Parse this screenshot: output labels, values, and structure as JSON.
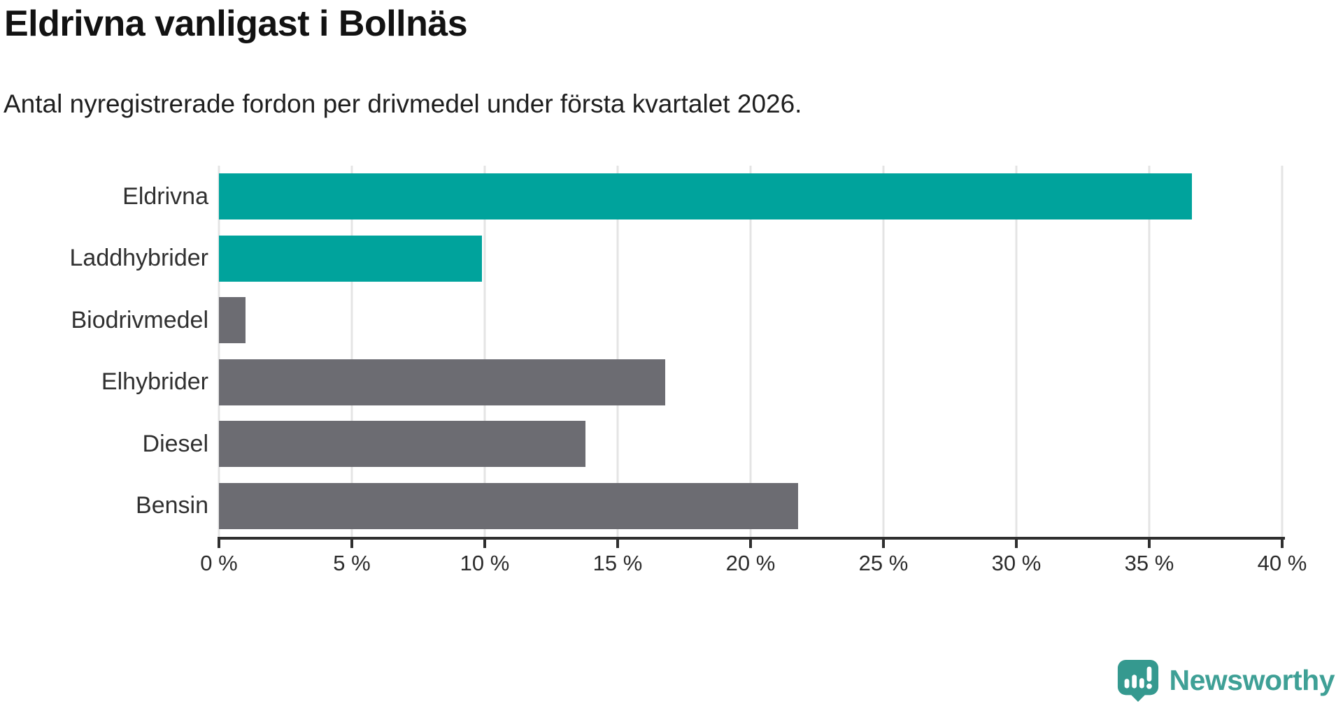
{
  "title": "Eldrivna vanligast i Bollnäs",
  "subtitle": "Antal nyregistrerade fordon per drivmedel under första kvartalet 2026.",
  "chart_data": {
    "type": "bar",
    "orientation": "horizontal",
    "title": "Eldrivna vanligast i Bollnäs",
    "subtitle": "Antal nyregistrerade fordon per drivmedel under första kvartalet 2026.",
    "categories": [
      "Eldrivna",
      "Laddhybrider",
      "Biodrivmedel",
      "Elhybrider",
      "Diesel",
      "Bensin"
    ],
    "values": [
      36.6,
      9.9,
      1.0,
      16.8,
      13.8,
      21.8
    ],
    "bar_colors": [
      "#00A39C",
      "#00A39C",
      "#6C6C72",
      "#6C6C72",
      "#6C6C72",
      "#6C6C72"
    ],
    "highlight_color": "#00A39C",
    "default_color": "#6C6C72",
    "xlabel": "",
    "ylabel": "",
    "xlim": [
      0,
      40
    ],
    "x_ticks": [
      0,
      5,
      10,
      15,
      20,
      25,
      30,
      35,
      40
    ],
    "x_tick_labels": [
      "0 %",
      "5 %",
      "10 %",
      "15 %",
      "20 %",
      "25 %",
      "30 %",
      "35 %",
      "40 %"
    ],
    "grid": "vertical-gridlines-on",
    "legend": "none",
    "gridline_color": "#e4e4e4",
    "axis_line_color": "#2f2f2f"
  },
  "branding": {
    "logo_text": "Newsworthy",
    "logo_text_color": "#3FA096",
    "logo_mark_color": "#35998F"
  }
}
